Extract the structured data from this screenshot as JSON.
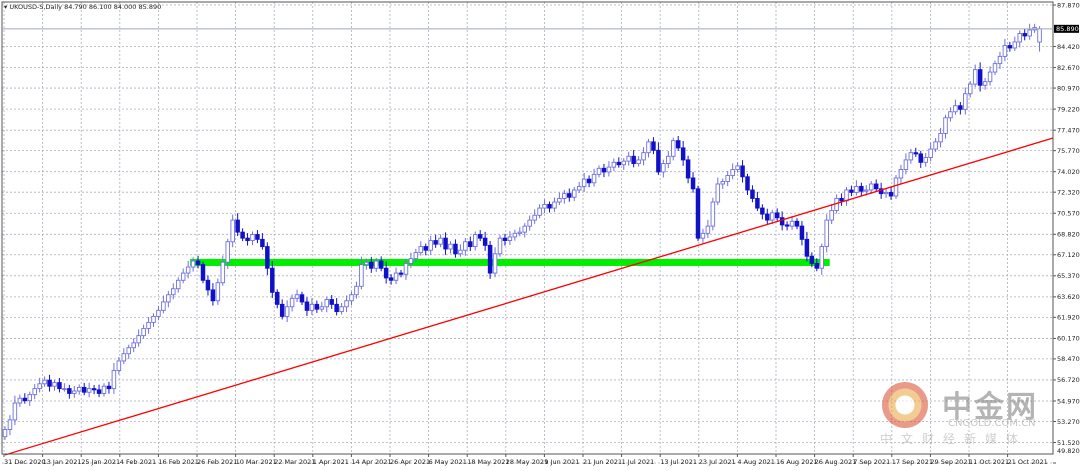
{
  "chart_data": {
    "type": "candlestick",
    "title": "UKOUSD-S,Daily",
    "ohlc_header": "84.790 86.100 84.000 85.890",
    "last_bar": {
      "open": 84.79,
      "high": 86.1,
      "low": 84.0,
      "close": 85.89
    },
    "current_price_label": "85.890",
    "ylim": [
      49.82,
      87.87
    ],
    "y_ticks": [
      "87.870",
      "84.420",
      "82.670",
      "80.970",
      "79.220",
      "77.470",
      "75.770",
      "74.020",
      "72.320",
      "70.570",
      "68.820",
      "67.120",
      "65.370",
      "63.620",
      "61.920",
      "60.170",
      "58.470",
      "56.720",
      "54.970",
      "53.270",
      "51.520",
      "49.820"
    ],
    "x_ticks": [
      "31 Dec 2020",
      "13 Jan 2021",
      "25 Jan 2021",
      "4 Feb 2021",
      "16 Feb 2021",
      "26 Feb 2021",
      "10 Mar 2021",
      "22 Mar 2021",
      "1 Apr 2021",
      "14 Apr 2021",
      "26 Apr 2021",
      "6 May 2021",
      "18 May 2021",
      "28 May 2021",
      "9 Jun 2021",
      "21 Jun 2021",
      "1 Jul 2021",
      "13 Jul 2021",
      "23 Jul 2021",
      "4 Aug 2021",
      "16 Aug 2021",
      "26 Aug 2021",
      "7 Sep 2021",
      "17 Sep 2021",
      "29 Sep 2021",
      "11 Oct 2021",
      "21 Oct 2021"
    ],
    "grid": true,
    "closes": [
      52.6,
      53.4,
      54.8,
      55.2,
      55.0,
      55.5,
      56.0,
      56.4,
      56.7,
      56.2,
      56.5,
      56.0,
      56.0,
      55.6,
      55.8,
      56.1,
      55.7,
      56.0,
      55.9,
      55.6,
      56.2,
      56.0,
      57.5,
      58.3,
      58.9,
      59.4,
      59.8,
      60.4,
      61.0,
      61.5,
      62.0,
      62.5,
      63.2,
      63.8,
      64.3,
      65.0,
      65.6,
      66.1,
      66.6,
      66.3,
      65.0,
      64.2,
      63.3,
      64.8,
      66.5,
      68.2,
      70.0,
      69.0,
      68.5,
      68.3,
      68.8,
      68.4,
      67.8,
      66.0,
      64.0,
      63.0,
      62.0,
      62.8,
      63.5,
      63.8,
      63.2,
      62.5,
      63.0,
      62.6,
      62.8,
      63.4,
      63.0,
      62.4,
      62.8,
      63.3,
      63.8,
      64.5,
      66.3,
      66.5,
      66.0,
      66.6,
      66.0,
      65.2,
      65.0,
      65.6,
      65.5,
      66.4,
      66.8,
      67.3,
      67.8,
      67.5,
      68.3,
      68.0,
      68.5,
      67.6,
      68.0,
      67.2,
      67.5,
      68.2,
      67.8,
      68.8,
      68.5,
      67.9,
      65.6,
      67.2,
      68.5,
      68.3,
      68.6,
      68.9,
      69.0,
      69.5,
      70.0,
      70.4,
      71.0,
      71.3,
      71.0,
      71.5,
      71.8,
      72.2,
      71.9,
      72.5,
      72.8,
      73.4,
      73.1,
      73.8,
      74.3,
      74.0,
      74.4,
      74.8,
      74.6,
      74.9,
      75.3,
      74.7,
      75.0,
      75.6,
      76.5,
      75.8,
      74.0,
      74.7,
      75.3,
      76.6,
      76.0,
      75.0,
      73.5,
      72.6,
      68.5,
      68.9,
      69.5,
      71.5,
      73.0,
      73.2,
      73.7,
      74.2,
      74.5,
      73.6,
      72.5,
      71.8,
      71.0,
      70.5,
      70.0,
      70.6,
      70.2,
      69.6,
      69.5,
      69.9,
      69.5,
      68.4,
      67.0,
      66.4,
      66.0,
      67.8,
      70.0,
      70.8,
      71.8,
      71.6,
      72.5,
      72.3,
      72.8,
      72.4,
      72.5,
      73.0,
      72.6,
      72.2,
      72.3,
      72.0,
      73.5,
      74.2,
      75.0,
      75.6,
      75.5,
      74.8,
      75.2,
      75.9,
      76.5,
      77.2,
      78.5,
      79.0,
      79.5,
      79.2,
      80.5,
      81.3,
      82.5,
      81.2,
      81.5,
      82.3,
      83.0,
      83.6,
      84.5,
      84.3,
      84.8,
      85.5,
      85.3,
      85.8,
      86.0,
      85.89
    ],
    "first_open": 52.0,
    "trendline": {
      "color": "#ff0000",
      "start": {
        "date": "31 Dec 2020",
        "price": 50.49
      },
      "end_price_at_right_edge": 76.82
    },
    "support_zone": {
      "color": "#00ee00",
      "price": 66.48,
      "from": "16 Feb 2021",
      "to": "26 Aug 2021"
    },
    "colors": {
      "bull": "#7070e0",
      "bear": "#1010c8",
      "grid": "#a9b0bc",
      "background": "#ffffff"
    }
  },
  "watermark": {
    "cn": "中金网",
    "en": "CNGOLD.COM.CN",
    "sub": "中文财经新媒体"
  }
}
